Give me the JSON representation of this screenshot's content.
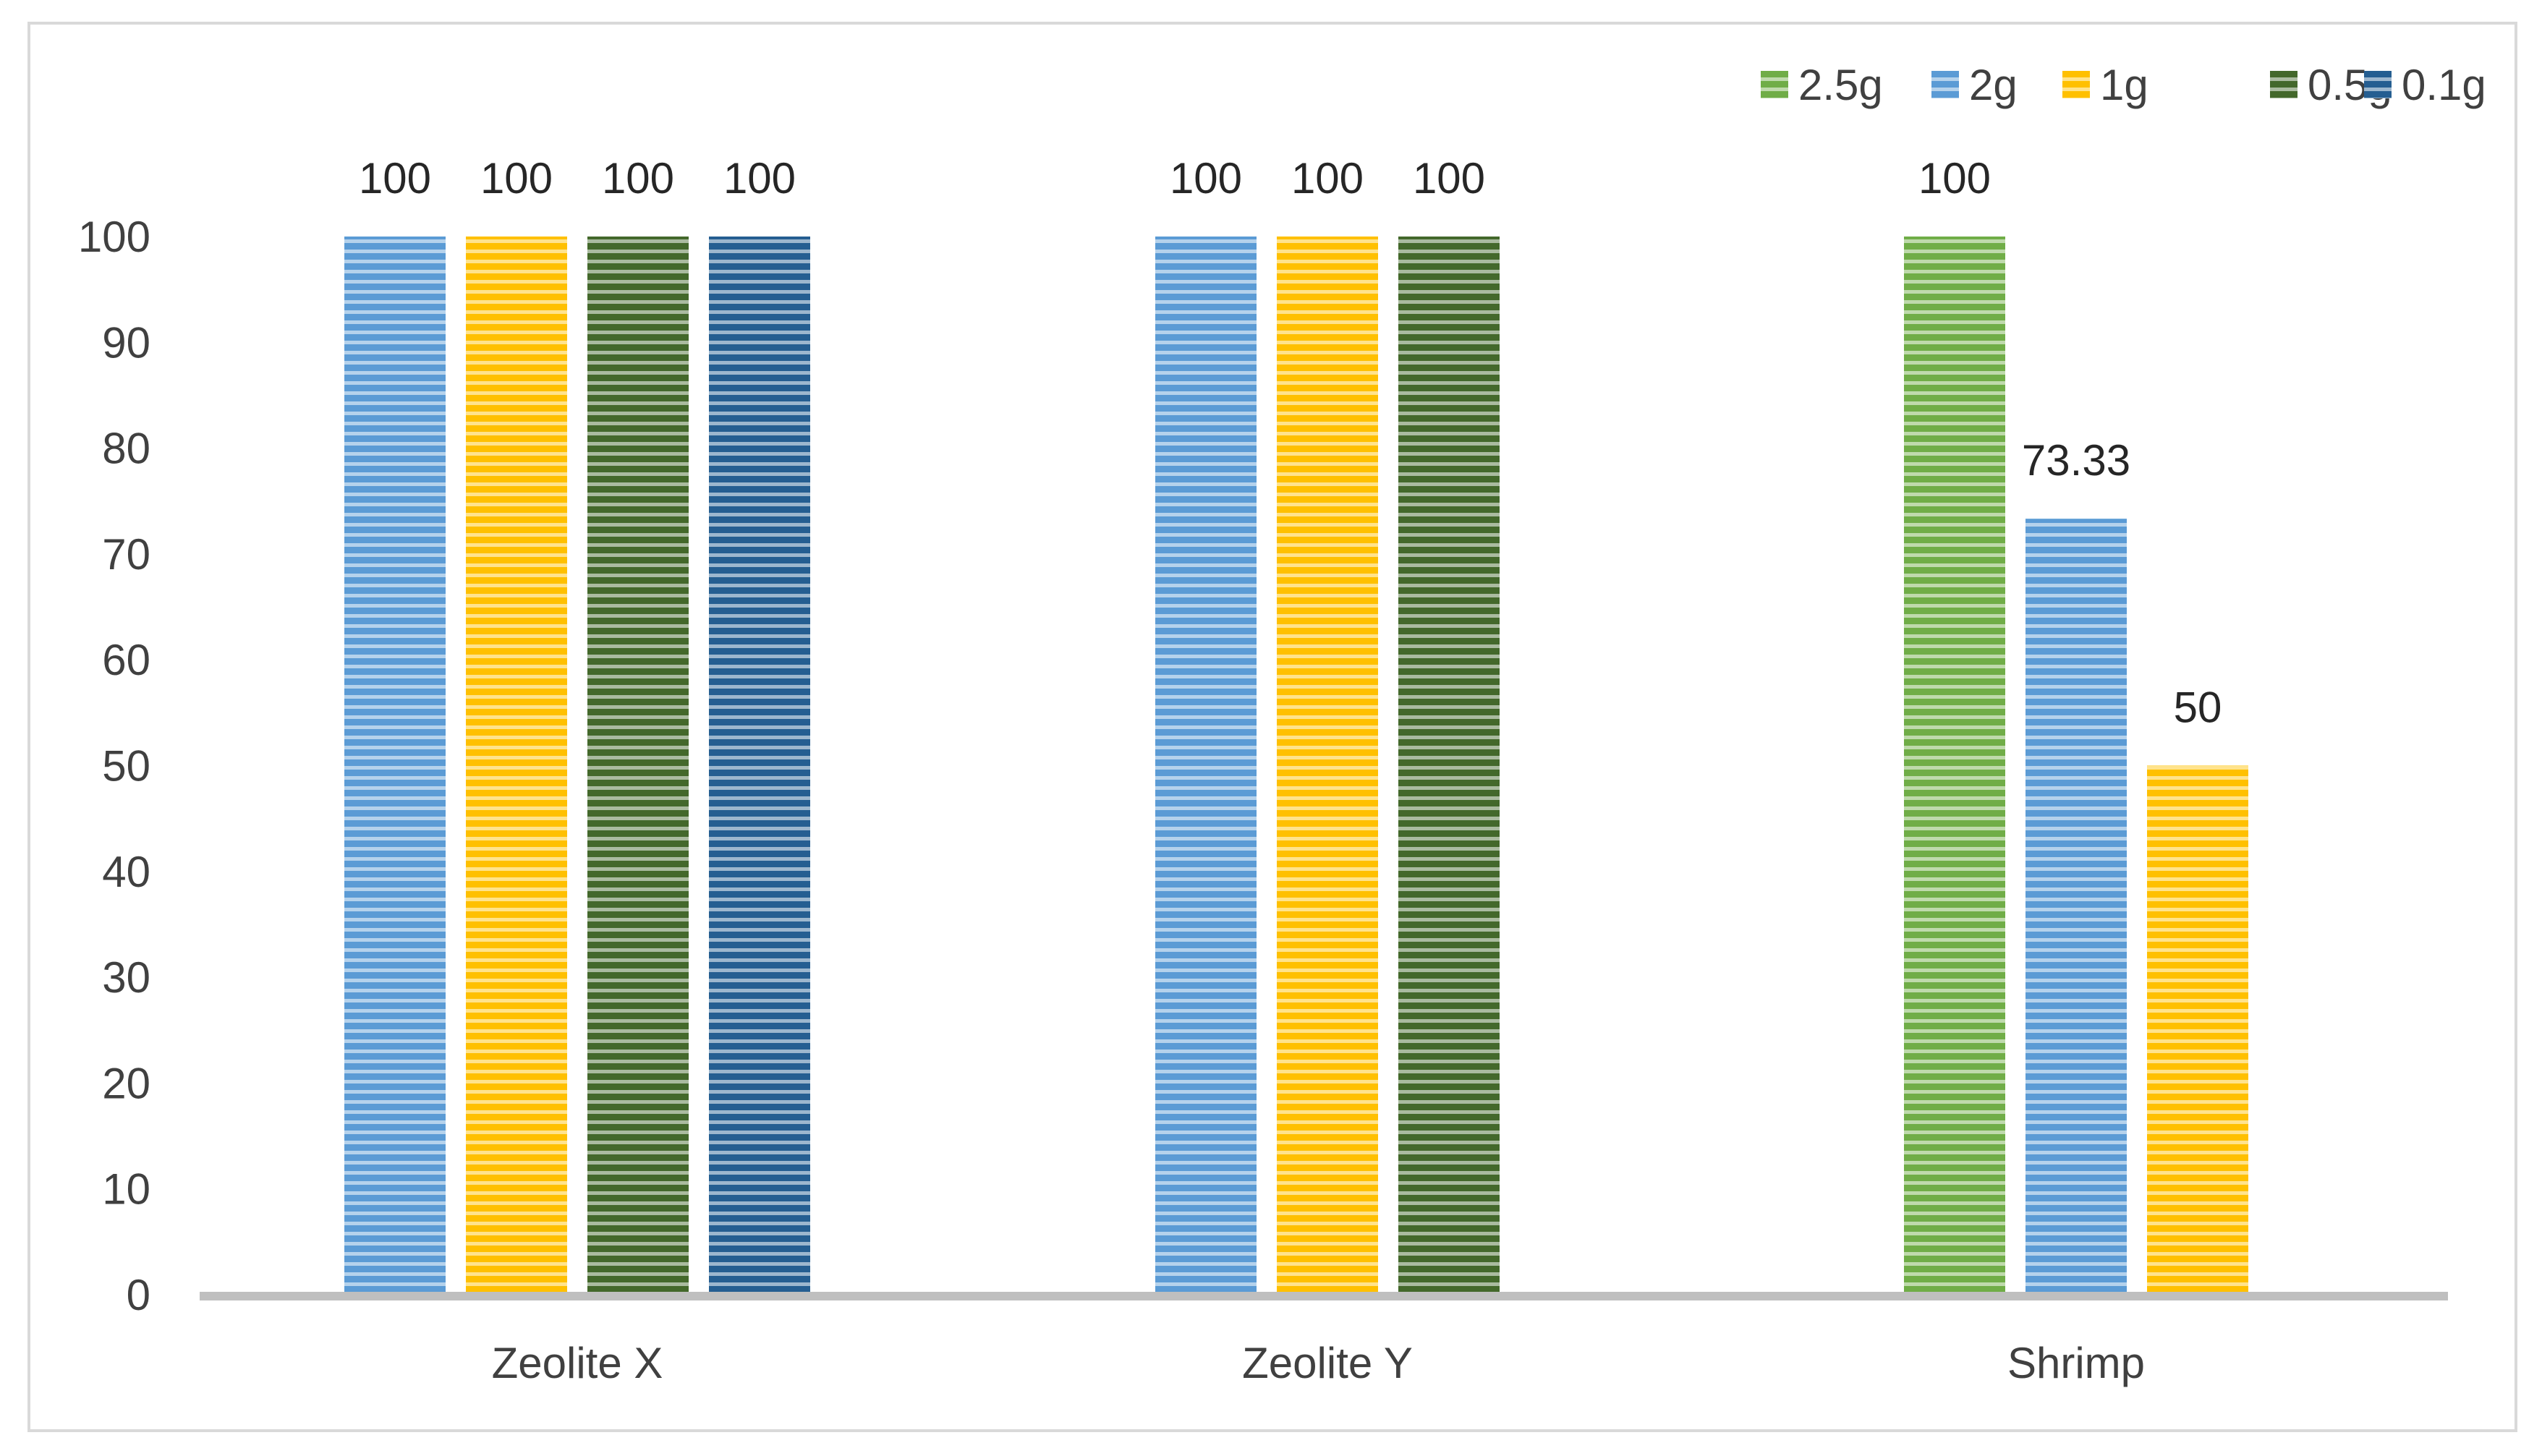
{
  "chart_data": {
    "type": "bar",
    "categories": [
      "Zeolite X",
      "Zeolite Y",
      "Shrimp"
    ],
    "series": [
      {
        "name": "2.5g",
        "color": "#70AD47",
        "values": [
          null,
          null,
          100
        ]
      },
      {
        "name": "2g",
        "color": "#5B9BD5",
        "values": [
          100,
          100,
          73.33
        ]
      },
      {
        "name": "1g",
        "color": "#FFC000",
        "values": [
          100,
          100,
          50
        ]
      },
      {
        "name": "0.5g",
        "color": "#43682B",
        "values": [
          100,
          100,
          null
        ]
      },
      {
        "name": "0.1g",
        "color": "#255E91",
        "values": [
          100,
          null,
          null
        ]
      }
    ],
    "data_labels": [
      [
        null,
        null,
        "100"
      ],
      [
        "100",
        "100",
        "73.33"
      ],
      [
        "100",
        "100",
        "50"
      ],
      [
        "100",
        "100",
        null
      ],
      [
        "100",
        null,
        null
      ]
    ],
    "title": "",
    "xlabel": "",
    "ylabel": "",
    "ylim": [
      0,
      100
    ],
    "yticks": [
      0,
      10,
      20,
      30,
      40,
      50,
      60,
      70,
      80,
      90,
      100
    ],
    "grid": false,
    "legend_position": "top-right",
    "bar_pattern": "horizontal-stripes"
  }
}
